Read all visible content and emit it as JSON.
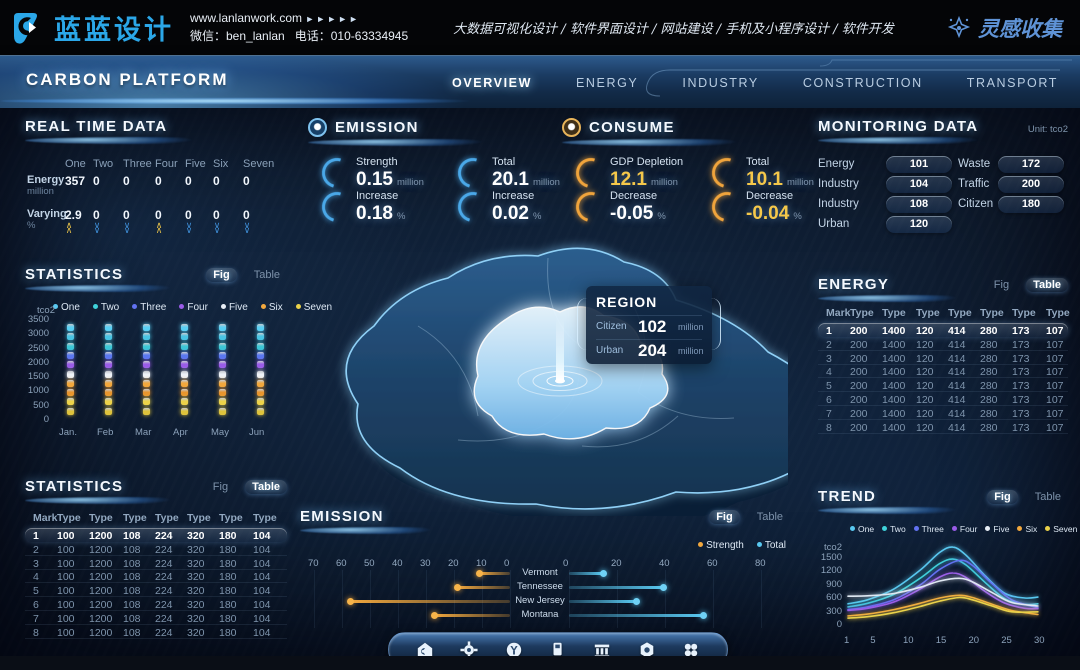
{
  "header": {
    "logo_text": "蓝蓝设计",
    "website": "www.lanlanwork.com",
    "arrows": "►►►►►",
    "wechat": "微信：ben_lanlan",
    "phone": "电话：010-63334945",
    "services": "大数据可视化设计 / 软件界面设计 / 网站建设 / 手机及小程序设计 / 软件开发",
    "collect": "灵感收集"
  },
  "nav": {
    "title": "CARBON PLATFORM",
    "tabs": [
      {
        "label": "OVERVIEW",
        "active": true
      },
      {
        "label": "ENERGY",
        "active": false
      },
      {
        "label": "INDUSTRY",
        "active": false
      },
      {
        "label": "CONSTRUCTION",
        "active": false
      },
      {
        "label": "TRANSPORT",
        "active": false
      }
    ]
  },
  "realtime": {
    "title": "REAL TIME DATA",
    "columns": [
      "One",
      "Two",
      "Three",
      "Four",
      "Five",
      "Six",
      "Seven"
    ],
    "rows": [
      {
        "label": "Energy",
        "unit": "million",
        "values": [
          "357",
          "0",
          "0",
          "0",
          "0",
          "0",
          "0"
        ]
      },
      {
        "label": "Varying",
        "unit": "%",
        "values": [
          "2.9",
          "0",
          "0",
          "0",
          "0",
          "0",
          "0"
        ],
        "trends": [
          "up",
          "down",
          "down",
          "up",
          "down",
          "down",
          "down"
        ]
      }
    ]
  },
  "series_legend": {
    "names": [
      "One",
      "Two",
      "Three",
      "Four",
      "Five",
      "Six",
      "Seven"
    ],
    "colors": [
      "#59c8f0",
      "#3fd2da",
      "#6272f2",
      "#9a5ce8",
      "#e8eef6",
      "#f2a83e",
      "#ead24a"
    ]
  },
  "stats_fig": {
    "title": "STATISTICS",
    "toggle": {
      "fig": "Fig",
      "table": "Table",
      "active": "fig"
    },
    "unit": "tco2",
    "yticks": [
      "3500",
      "3000",
      "2500",
      "2000",
      "1500",
      "1000",
      "500",
      "0"
    ],
    "months": [
      "Jan.",
      "Feb",
      "Mar",
      "Apr",
      "May",
      "Jun"
    ],
    "segment_colors": [
      "#5ad0f4",
      "#49c4e4",
      "#3cc8d6",
      "#5a78f0",
      "#9a5ce8",
      "#eef2f8",
      "#f2a83e",
      "#e8952e",
      "#ecd34a",
      "#dec33c"
    ]
  },
  "stats_table": {
    "title": "STATISTICS",
    "toggle": {
      "fig": "Fig",
      "table": "Table",
      "active": "table"
    },
    "headers": [
      "Mark",
      "Type",
      "Type",
      "Type",
      "Type",
      "Type",
      "Type",
      "Type"
    ],
    "rows": [
      [
        "1",
        "100",
        "1200",
        "108",
        "224",
        "320",
        "180",
        "104"
      ],
      [
        "2",
        "100",
        "1200",
        "108",
        "224",
        "320",
        "180",
        "104"
      ],
      [
        "3",
        "100",
        "1200",
        "108",
        "224",
        "320",
        "180",
        "104"
      ],
      [
        "4",
        "100",
        "1200",
        "108",
        "224",
        "320",
        "180",
        "104"
      ],
      [
        "5",
        "100",
        "1200",
        "108",
        "224",
        "320",
        "180",
        "104"
      ],
      [
        "6",
        "100",
        "1200",
        "108",
        "224",
        "320",
        "180",
        "104"
      ],
      [
        "7",
        "100",
        "1200",
        "108",
        "224",
        "320",
        "180",
        "104"
      ],
      [
        "8",
        "100",
        "1200",
        "108",
        "224",
        "320",
        "180",
        "104"
      ]
    ]
  },
  "emission_stats": {
    "title": "EMISSION",
    "accent": "#4aa8e8",
    "items": [
      {
        "label": "Strength",
        "value": "0.15",
        "unit": "million",
        "color": "#ffffff"
      },
      {
        "label": "Total",
        "value": "20.1",
        "unit": "million",
        "color": "#ffffff"
      },
      {
        "label": "Increase",
        "value": "0.18",
        "unit": "%",
        "color": "#ffffff"
      },
      {
        "label": "Increase",
        "value": "0.02",
        "unit": "%",
        "color": "#ffffff"
      }
    ]
  },
  "consume_stats": {
    "title": "CONSUME",
    "accent": "#f0a43c",
    "items": [
      {
        "label": "GDP Depletion",
        "value": "12.1",
        "unit": "million",
        "color": "#f5c84a"
      },
      {
        "label": "Total",
        "value": "10.1",
        "unit": "million",
        "color": "#f5c84a"
      },
      {
        "label": "Decrease",
        "value": "-0.05",
        "unit": "%",
        "color": "#ffffff"
      },
      {
        "label": "Decrease",
        "value": "-0.04",
        "unit": "%",
        "color": "#f5c84a"
      }
    ]
  },
  "region_popup": {
    "title": "REGION",
    "rows": [
      {
        "label": "Citizen",
        "value": "102",
        "unit": "million"
      },
      {
        "label": "Urban",
        "value": "204",
        "unit": "million"
      }
    ]
  },
  "monitoring": {
    "title": "MONITORING DATA",
    "unit": "Unit: tco2",
    "left": [
      {
        "label": "Energy",
        "value": "101"
      },
      {
        "label": "Industry",
        "value": "104"
      },
      {
        "label": "Industry",
        "value": "108"
      },
      {
        "label": "Urban",
        "value": "120"
      }
    ],
    "right": [
      {
        "label": "Waste",
        "value": "172"
      },
      {
        "label": "Traffic",
        "value": "200"
      },
      {
        "label": "Citizen",
        "value": "180"
      }
    ]
  },
  "energy_table": {
    "title": "ENERGY",
    "toggle": {
      "fig": "Fig",
      "table": "Table",
      "active": "table"
    },
    "headers": [
      "Mark",
      "Type",
      "Type",
      "Type",
      "Type",
      "Type",
      "Type",
      "Type"
    ],
    "rows": [
      [
        "1",
        "200",
        "1400",
        "120",
        "414",
        "280",
        "173",
        "107"
      ],
      [
        "2",
        "200",
        "1400",
        "120",
        "414",
        "280",
        "173",
        "107"
      ],
      [
        "3",
        "200",
        "1400",
        "120",
        "414",
        "280",
        "173",
        "107"
      ],
      [
        "4",
        "200",
        "1400",
        "120",
        "414",
        "280",
        "173",
        "107"
      ],
      [
        "5",
        "200",
        "1400",
        "120",
        "414",
        "280",
        "173",
        "107"
      ],
      [
        "6",
        "200",
        "1400",
        "120",
        "414",
        "280",
        "173",
        "107"
      ],
      [
        "7",
        "200",
        "1400",
        "120",
        "414",
        "280",
        "173",
        "107"
      ],
      [
        "8",
        "200",
        "1400",
        "120",
        "414",
        "280",
        "173",
        "107"
      ]
    ]
  },
  "trend": {
    "title": "TREND",
    "toggle": {
      "fig": "Fig",
      "table": "Table",
      "active": "fig"
    },
    "unit": "tco2",
    "yticks": [
      1500,
      1200,
      900,
      600,
      300,
      0
    ],
    "xticks": [
      1,
      5,
      10,
      15,
      20,
      25,
      30
    ],
    "series": [
      {
        "name": "One",
        "color": "#59c8f0",
        "points": [
          [
            1,
            430
          ],
          [
            4,
            520
          ],
          [
            8,
            760
          ],
          [
            12,
            1180
          ],
          [
            15,
            1580
          ],
          [
            17,
            1700
          ],
          [
            19,
            1520
          ],
          [
            22,
            1050
          ],
          [
            25,
            660
          ],
          [
            28,
            560
          ],
          [
            30,
            580
          ]
        ]
      },
      {
        "name": "Two",
        "color": "#3fd2da",
        "points": [
          [
            1,
            360
          ],
          [
            4,
            440
          ],
          [
            8,
            640
          ],
          [
            12,
            1000
          ],
          [
            15,
            1330
          ],
          [
            17,
            1430
          ],
          [
            19,
            1300
          ],
          [
            22,
            900
          ],
          [
            25,
            540
          ],
          [
            28,
            420
          ],
          [
            30,
            430
          ]
        ]
      },
      {
        "name": "Three",
        "color": "#6272f2",
        "points": [
          [
            1,
            300
          ],
          [
            4,
            360
          ],
          [
            8,
            520
          ],
          [
            12,
            850
          ],
          [
            15,
            1200
          ],
          [
            18,
            1400
          ],
          [
            20,
            1290
          ],
          [
            23,
            880
          ],
          [
            26,
            520
          ],
          [
            30,
            340
          ]
        ]
      },
      {
        "name": "Four",
        "color": "#9a5ce8",
        "points": [
          [
            1,
            280
          ],
          [
            4,
            330
          ],
          [
            8,
            470
          ],
          [
            12,
            760
          ],
          [
            15,
            1030
          ],
          [
            17,
            1120
          ],
          [
            19,
            1020
          ],
          [
            22,
            700
          ],
          [
            25,
            440
          ],
          [
            28,
            330
          ],
          [
            30,
            320
          ]
        ]
      },
      {
        "name": "Five",
        "color": "#dfe8f2",
        "points": [
          [
            1,
            600
          ],
          [
            4,
            610
          ],
          [
            8,
            660
          ],
          [
            12,
            800
          ],
          [
            15,
            940
          ],
          [
            18,
            1000
          ],
          [
            20,
            920
          ],
          [
            23,
            680
          ],
          [
            26,
            460
          ],
          [
            30,
            380
          ]
        ]
      },
      {
        "name": "Six",
        "color": "#f2a83e",
        "points": [
          [
            1,
            160
          ],
          [
            4,
            200
          ],
          [
            8,
            300
          ],
          [
            12,
            440
          ],
          [
            15,
            560
          ],
          [
            18,
            620
          ],
          [
            20,
            570
          ],
          [
            23,
            420
          ],
          [
            26,
            280
          ],
          [
            30,
            190
          ]
        ]
      },
      {
        "name": "Seven",
        "color": "#ead24a",
        "points": [
          [
            1,
            110
          ],
          [
            4,
            140
          ],
          [
            8,
            230
          ],
          [
            12,
            370
          ],
          [
            15,
            490
          ],
          [
            18,
            570
          ],
          [
            20,
            520
          ],
          [
            23,
            380
          ],
          [
            26,
            250
          ],
          [
            30,
            250
          ]
        ]
      }
    ]
  },
  "emission_chart": {
    "title": "EMISSION",
    "toggle": {
      "fig": "Fig",
      "table": "Table",
      "active": "fig"
    },
    "legend": [
      {
        "name": "Strength",
        "color": "#f2a83e"
      },
      {
        "name": "Total",
        "color": "#59c8f0"
      }
    ],
    "left_ticks": [
      70,
      60,
      50,
      40,
      30,
      20,
      10,
      0
    ],
    "right_ticks": [
      0,
      20,
      40,
      60,
      80
    ],
    "categories": [
      "Vermont",
      "Tennessee",
      "New Jersey",
      "Montana"
    ],
    "strength": [
      11,
      19,
      57,
      27
    ],
    "total": [
      14,
      39,
      28,
      56
    ]
  },
  "dock_icons": [
    "home",
    "gear",
    "valve",
    "fuel",
    "bank",
    "nut",
    "cluster"
  ]
}
